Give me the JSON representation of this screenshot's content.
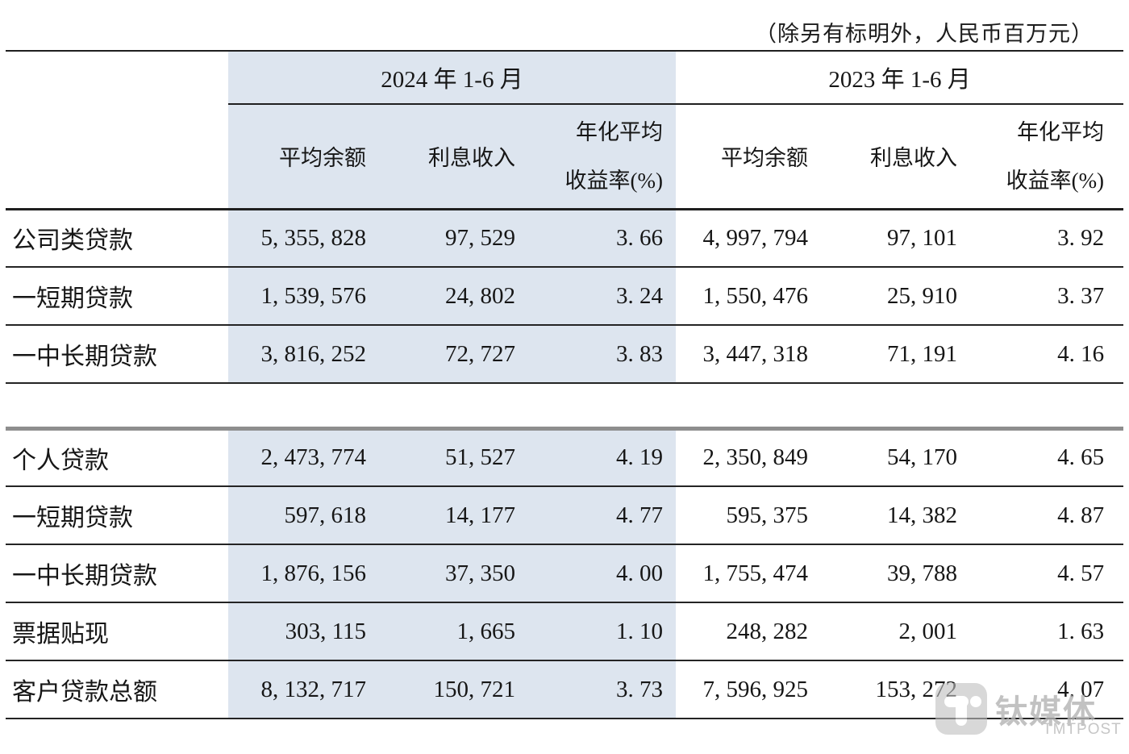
{
  "note": "（除另有标明外，人民币百万元）",
  "colors": {
    "highlight_band": "#dde5ef",
    "border_dark": "#1f1f1f",
    "border_gray": "#8e8e8e",
    "watermark_gray": "#bfbfbf"
  },
  "table": {
    "group_headers": {
      "g2024": "2024 年 1-6 月",
      "g2023": "2023 年 1-6 月"
    },
    "sub_headers": {
      "avg_balance": "平均余额",
      "interest_income": "利息收入",
      "yield_line1": "年化平均",
      "yield_line2": "收益率(%)"
    },
    "sections": [
      {
        "rows": [
          {
            "label": "公司类贷款",
            "cells": [
              "5, 355, 828",
              "97, 529",
              "3. 66",
              "4, 997, 794",
              "97, 101",
              "3. 92"
            ]
          },
          {
            "label": "一短期贷款",
            "cells": [
              "1, 539, 576",
              "24, 802",
              "3. 24",
              "1, 550, 476",
              "25, 910",
              "3. 37"
            ]
          },
          {
            "label": "一中长期贷款",
            "cells": [
              "3, 816, 252",
              "72, 727",
              "3. 83",
              "3, 447, 318",
              "71, 191",
              "4. 16"
            ]
          }
        ]
      },
      {
        "rows": [
          {
            "label": "个人贷款",
            "cells": [
              "2, 473, 774",
              "51, 527",
              "4. 19",
              "2, 350, 849",
              "54, 170",
              "4. 65"
            ]
          },
          {
            "label": "一短期贷款",
            "cells": [
              "597, 618",
              "14, 177",
              "4. 77",
              "595, 375",
              "14, 382",
              "4. 87"
            ]
          },
          {
            "label": "一中长期贷款",
            "cells": [
              "1, 876, 156",
              "37, 350",
              "4. 00",
              "1, 755, 474",
              "39, 788",
              "4. 57"
            ]
          },
          {
            "label": "票据贴现",
            "cells": [
              "303, 115",
              "1, 665",
              "1. 10",
              "248, 282",
              "2, 001",
              "1. 63"
            ]
          },
          {
            "label": "客户贷款总额",
            "cells": [
              "8, 132, 717",
              "150, 721",
              "3. 73",
              "7, 596, 925",
              "153, 272",
              "4. 07"
            ]
          }
        ]
      }
    ]
  },
  "watermark": {
    "brand": "钛媒体",
    "brand_latin": "TMTPOST"
  },
  "chart_data": {
    "type": "table",
    "title": "",
    "unit_note": "（除另有标明外，人民币百万元）",
    "column_groups": [
      "2024 年 1-6 月",
      "2023 年 1-6 月"
    ],
    "columns": [
      "平均余额",
      "利息收入",
      "年化平均收益率(%)",
      "平均余额",
      "利息收入",
      "年化平均收益率(%)"
    ],
    "rows": [
      {
        "label": "公司类贷款",
        "values": [
          5355828,
          97529,
          3.66,
          4997794,
          97101,
          3.92
        ]
      },
      {
        "label": "一短期贷款",
        "values": [
          1539576,
          24802,
          3.24,
          1550476,
          25910,
          3.37
        ]
      },
      {
        "label": "一中长期贷款",
        "values": [
          3816252,
          72727,
          3.83,
          3447318,
          71191,
          4.16
        ]
      },
      {
        "label": "个人贷款",
        "values": [
          2473774,
          51527,
          4.19,
          2350849,
          54170,
          4.65
        ]
      },
      {
        "label": "一短期贷款",
        "values": [
          597618,
          14177,
          4.77,
          595375,
          14382,
          4.87
        ]
      },
      {
        "label": "一中长期贷款",
        "values": [
          1876156,
          37350,
          4.0,
          1755474,
          39788,
          4.57
        ]
      },
      {
        "label": "票据贴现",
        "values": [
          303115,
          1665,
          1.1,
          248282,
          2001,
          1.63
        ]
      },
      {
        "label": "客户贷款总额",
        "values": [
          8132717,
          150721,
          3.73,
          7596925,
          153272,
          4.07
        ]
      }
    ],
    "layout": {
      "highlighted_group": "2024 年 1-6 月",
      "grid": "horizontal-rules-only",
      "section_break_after_row": 2
    }
  }
}
